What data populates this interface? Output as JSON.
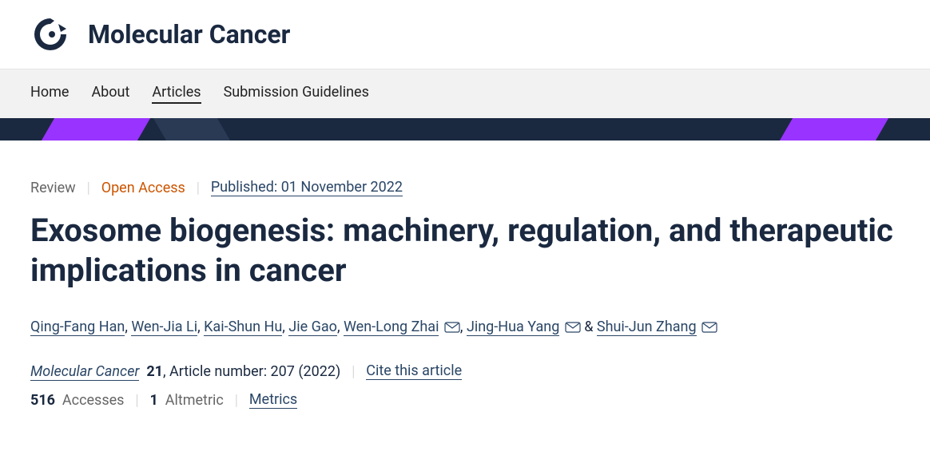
{
  "header": {
    "journal_name": "Molecular Cancer"
  },
  "nav": {
    "items": [
      "Home",
      "About",
      "Articles",
      "Submission Guidelines"
    ],
    "active_index": 2
  },
  "article": {
    "type": "Review",
    "access": "Open Access",
    "pub_date": "Published: 01 November 2022",
    "title": "Exosome biogenesis: machinery, regulation, and therapeutic implications in cancer",
    "authors": [
      {
        "name": "Qing-Fang Han",
        "mail": false
      },
      {
        "name": "Wen-Jia Li",
        "mail": false
      },
      {
        "name": "Kai-Shun Hu",
        "mail": false
      },
      {
        "name": "Jie Gao",
        "mail": false
      },
      {
        "name": "Wen-Long Zhai",
        "mail": true
      },
      {
        "name": "Jing-Hua Yang",
        "mail": true
      },
      {
        "name": "Shui-Jun Zhang",
        "mail": true
      }
    ],
    "citation": {
      "journal": "Molecular Cancer",
      "volume": "21",
      "article_text": ", Article number: 207 (2022)",
      "cite_link": "Cite this article"
    },
    "metrics": {
      "accesses_num": "516",
      "accesses_label": "Accesses",
      "altmetric_num": "1",
      "altmetric_label": "Altmetric",
      "metrics_link": "Metrics"
    }
  },
  "colors": {
    "dark_navy": "#1a2940",
    "link_blue": "#2a4666",
    "orange": "#cc5500",
    "purple": "#9933ff",
    "gray": "#666666",
    "light_gray": "#f2f2f2"
  }
}
